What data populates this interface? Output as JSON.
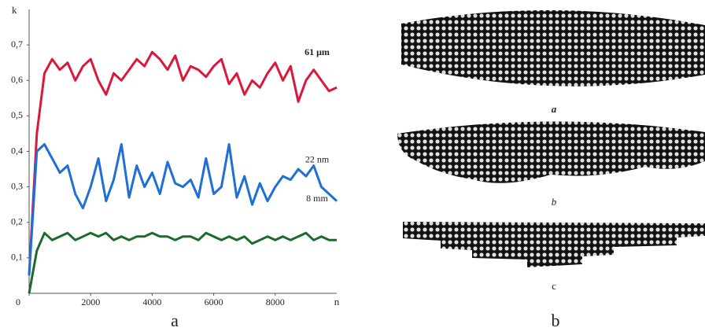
{
  "chart_data": {
    "type": "line",
    "x_label": "n",
    "y_label": "k",
    "x": [
      0,
      250,
      500,
      750,
      1000,
      1250,
      1500,
      1750,
      2000,
      2250,
      2500,
      2750,
      3000,
      3250,
      3500,
      3750,
      4000,
      4250,
      4500,
      4750,
      5000,
      5250,
      5500,
      5750,
      6000,
      6250,
      6500,
      6750,
      7000,
      7250,
      7500,
      7750,
      8000,
      8250,
      8500,
      8750,
      9000,
      9250,
      9500,
      9750,
      10000
    ],
    "xlim": [
      0,
      10000
    ],
    "ylim": [
      0,
      0.8
    ],
    "xticks": [
      0,
      2000,
      4000,
      6000,
      8000
    ],
    "yticks": [
      {
        "value": 0.1,
        "label": "0,1"
      },
      {
        "value": 0.2,
        "label": "0,2"
      },
      {
        "value": 0.3,
        "label": "0,3"
      },
      {
        "value": 0.4,
        "label": "0,4"
      },
      {
        "value": 0.5,
        "label": "0,5"
      },
      {
        "value": 0.6,
        "label": "0,6"
      },
      {
        "value": 0.7,
        "label": "0,7"
      }
    ],
    "series": [
      {
        "name": "61 μm",
        "color": "#d9183b",
        "values": [
          0.05,
          0.45,
          0.62,
          0.66,
          0.63,
          0.65,
          0.6,
          0.64,
          0.66,
          0.6,
          0.56,
          0.62,
          0.6,
          0.63,
          0.66,
          0.64,
          0.68,
          0.66,
          0.63,
          0.67,
          0.6,
          0.64,
          0.63,
          0.61,
          0.64,
          0.66,
          0.59,
          0.62,
          0.56,
          0.6,
          0.58,
          0.62,
          0.65,
          0.6,
          0.64,
          0.54,
          0.6,
          0.63,
          0.6,
          0.57,
          0.58
        ]
      },
      {
        "name": "22 nm",
        "color": "#1f6fd6",
        "values": [
          0.05,
          0.4,
          0.42,
          0.38,
          0.34,
          0.36,
          0.28,
          0.24,
          0.3,
          0.38,
          0.26,
          0.32,
          0.42,
          0.27,
          0.36,
          0.3,
          0.34,
          0.28,
          0.37,
          0.31,
          0.3,
          0.32,
          0.27,
          0.38,
          0.28,
          0.3,
          0.42,
          0.27,
          0.33,
          0.25,
          0.31,
          0.26,
          0.3,
          0.33,
          0.32,
          0.35,
          0.33,
          0.36,
          0.3,
          0.28,
          0.26
        ]
      },
      {
        "name": "8 mm",
        "color": "#1d6b2a",
        "values": [
          0.0,
          0.12,
          0.17,
          0.15,
          0.16,
          0.17,
          0.15,
          0.16,
          0.17,
          0.16,
          0.17,
          0.15,
          0.16,
          0.15,
          0.16,
          0.16,
          0.17,
          0.16,
          0.16,
          0.15,
          0.16,
          0.16,
          0.15,
          0.17,
          0.16,
          0.15,
          0.16,
          0.15,
          0.16,
          0.14,
          0.15,
          0.16,
          0.15,
          0.16,
          0.15,
          0.16,
          0.17,
          0.15,
          0.16,
          0.15,
          0.15
        ]
      }
    ]
  },
  "panels": {
    "left_caption": "a",
    "right_caption": "b",
    "image_labels": [
      "a",
      "b",
      "c"
    ]
  }
}
